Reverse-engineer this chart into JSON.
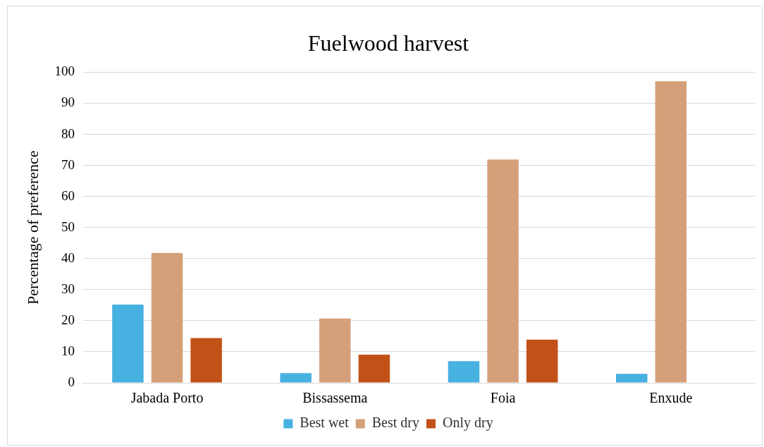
{
  "chart_data": {
    "type": "bar",
    "title": "Fuelwood harvest",
    "ylabel": "Percentage of preference",
    "categories": [
      "Jabada Porto",
      "Bissassema",
      "Foia",
      "Enxude"
    ],
    "series": [
      {
        "name": "Best wet",
        "color": "#47b1e1",
        "values": [
          25.2,
          3.1,
          7.0,
          2.9
        ]
      },
      {
        "name": "Best dry",
        "color": "#d59f79",
        "values": [
          41.8,
          20.7,
          71.9,
          97.1
        ]
      },
      {
        "name": "Only dry",
        "color": "#c25118",
        "values": [
          14.4,
          9.1,
          13.9,
          0
        ]
      }
    ],
    "ylim": [
      0,
      100
    ],
    "yticks": [
      0,
      10,
      20,
      30,
      40,
      50,
      60,
      70,
      80,
      90,
      100
    ],
    "grid": "y",
    "legend": "bottom"
  }
}
